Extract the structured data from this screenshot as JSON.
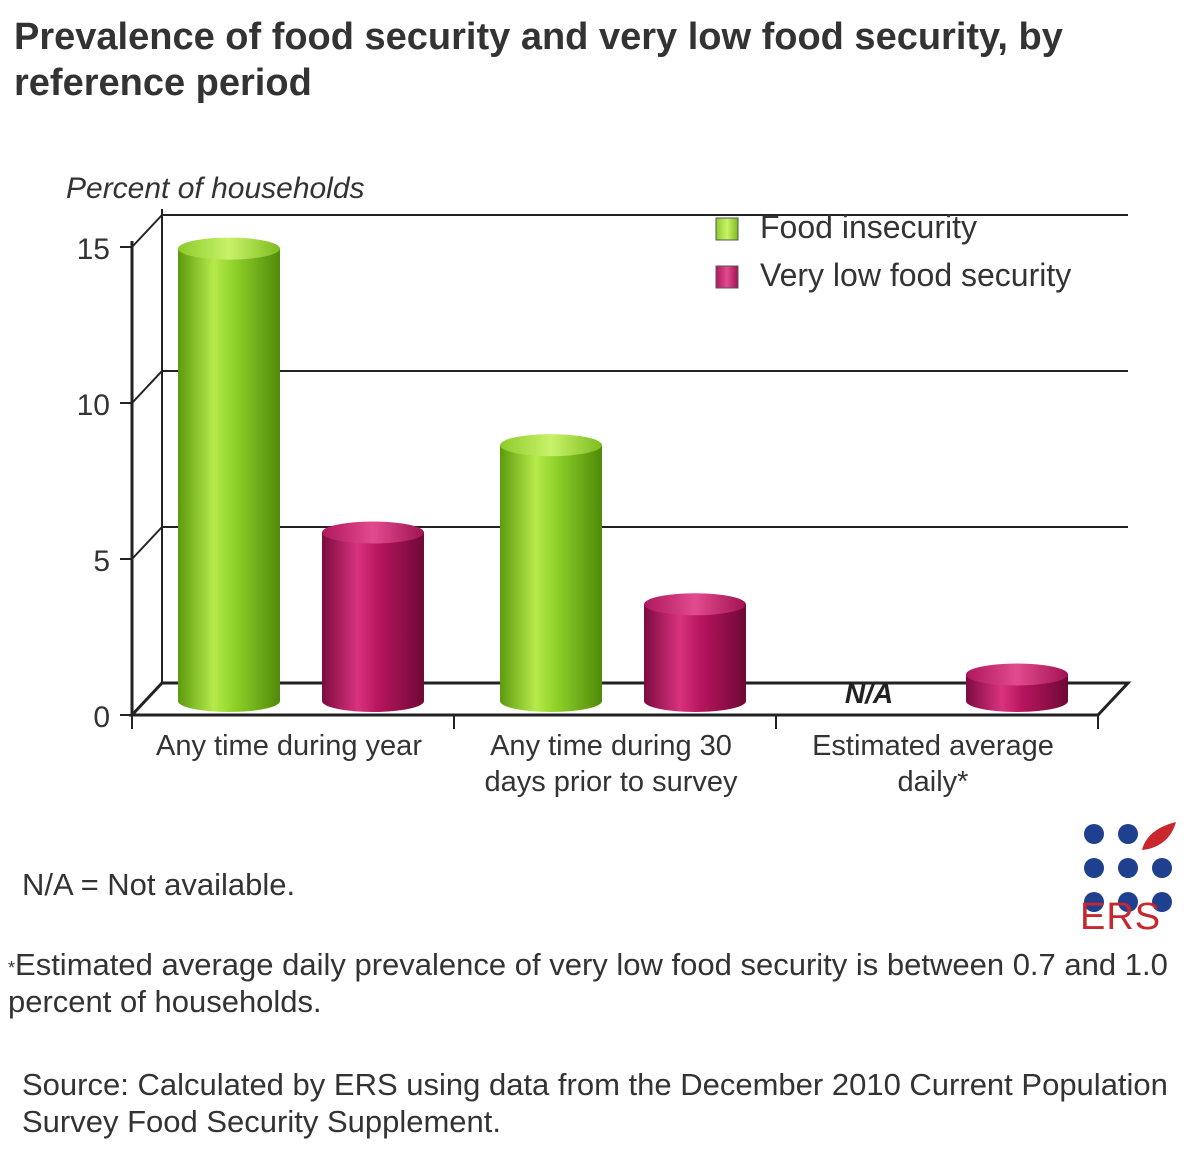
{
  "chart_data": {
    "type": "bar",
    "title": "Prevalence of food security and very low food security, by reference period",
    "ylabel": "Percent of households",
    "xlabel": "",
    "ylim": [
      0,
      15
    ],
    "yticks": [
      "0",
      "5",
      "10",
      "15"
    ],
    "grid": true,
    "legend_position": "top-right",
    "categories": [
      "Any time during year",
      "Any time during 30 days prior to survey",
      "Estimated average daily*"
    ],
    "series": [
      {
        "name": "Food insecurity",
        "color": "#7fc31c",
        "values": [
          14.5,
          8.2,
          null
        ],
        "missing_label": "N/A"
      },
      {
        "name": "Very low food security",
        "color": "#b5145f",
        "values": [
          5.4,
          3.1,
          0.85
        ]
      }
    ]
  },
  "notes": {
    "na": "N/A = Not available.",
    "footnote_mark": "*",
    "footnote": "Estimated average daily prevalence of very low food security is between 0.7 and 1.0 percent of households.",
    "source": "Source: Calculated by ERS using data from the December 2010 Current Population Survey Food Security Supplement."
  },
  "logo": {
    "text": "ERS",
    "dot_color": "#1f3f8f",
    "leaf_color": "#c8272e"
  }
}
